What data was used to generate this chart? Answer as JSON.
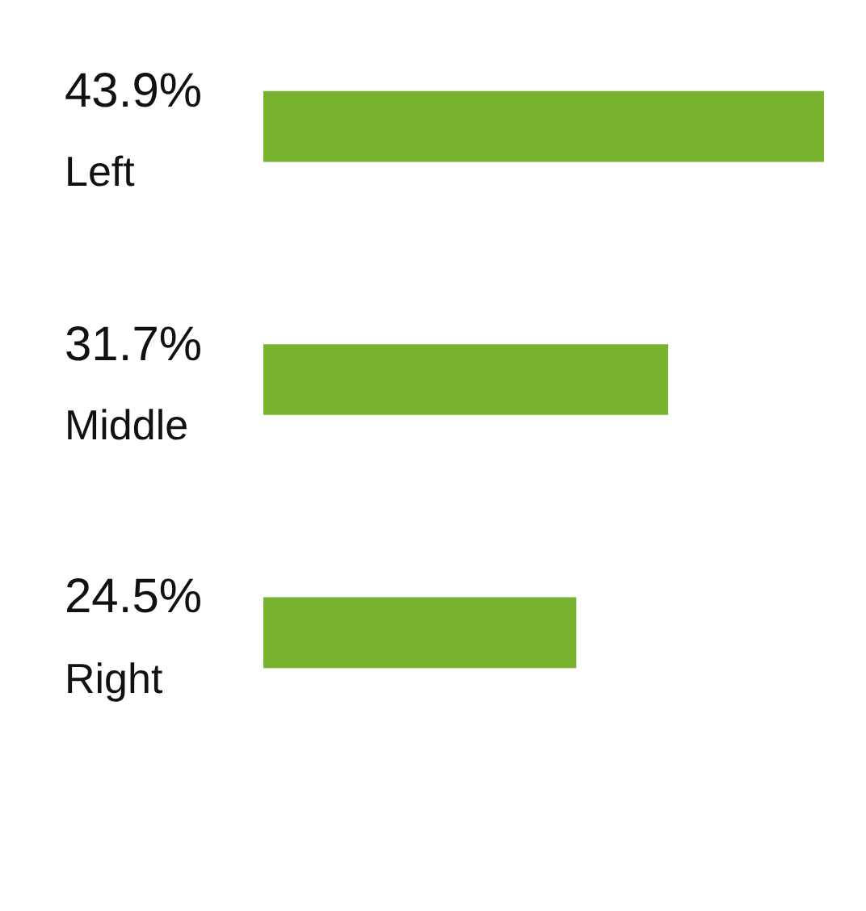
{
  "chart_data": {
    "type": "bar",
    "orientation": "horizontal",
    "categories": [
      "Left",
      "Middle",
      "Right"
    ],
    "values": [
      43.9,
      31.7,
      24.5
    ],
    "color": "#77b32f",
    "value_labels": [
      "43.9%",
      "31.7%",
      "24.5%"
    ],
    "legend": false
  }
}
